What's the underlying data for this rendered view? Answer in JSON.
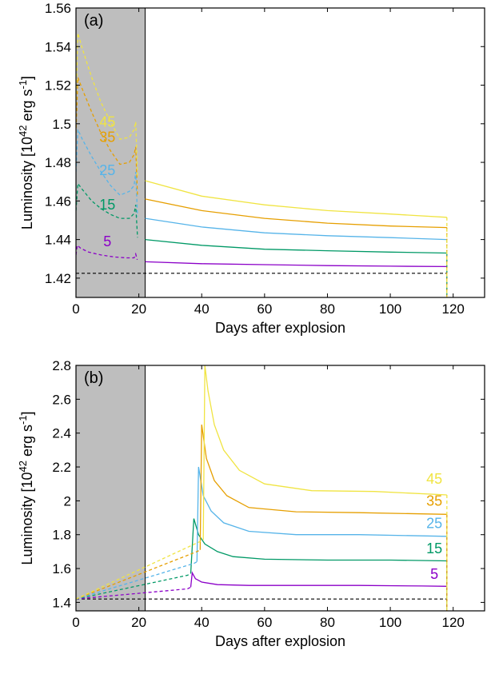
{
  "chart_data": [
    {
      "type": "line",
      "panel_label": "(a)",
      "xlabel": "Days after explosion",
      "ylabel": "Luminosity [10^42 erg s^-1]",
      "ylabel_parts": {
        "base": "Luminosity [10",
        "exp1": "42",
        "mid": " erg s",
        "exp2": "-1",
        "end": "]"
      },
      "xlim": [
        0,
        130
      ],
      "ylim": [
        1.41,
        1.56
      ],
      "xticks": [
        0,
        20,
        40,
        60,
        80,
        100,
        120
      ],
      "yticks": [
        1.42,
        1.44,
        1.46,
        1.48,
        1.5,
        1.52,
        1.54,
        1.56
      ],
      "ytick_labels": [
        "1.42",
        "1.44",
        "1.46",
        "1.48",
        "1.5",
        "1.52",
        "1.54",
        "1.56"
      ],
      "shaded_region": [
        0,
        22
      ],
      "baseline": {
        "y": 1.4225,
        "x": [
          0,
          118
        ],
        "style": "dashed",
        "color": "#000000"
      },
      "series": [
        {
          "name": "5",
          "color": "#8b00c8",
          "dashed": [
            [
              0,
              1.432
            ],
            [
              0.4,
              1.437
            ],
            [
              1.5,
              1.4355
            ],
            [
              4,
              1.4335
            ],
            [
              8,
              1.432
            ],
            [
              12,
              1.431
            ],
            [
              16,
              1.4305
            ],
            [
              18.5,
              1.4305
            ],
            [
              19,
              1.4325
            ],
            [
              19.5,
              1.4295
            ]
          ],
          "solid": [
            [
              22,
              1.4285
            ],
            [
              40,
              1.4275
            ],
            [
              60,
              1.427
            ],
            [
              80,
              1.4265
            ],
            [
              100,
              1.4262
            ],
            [
              118,
              1.426
            ]
          ],
          "label_at": [
            10,
            1.4365
          ]
        },
        {
          "name": "15",
          "color": "#009966",
          "dashed": [
            [
              0,
              1.455
            ],
            [
              0.6,
              1.469
            ],
            [
              2,
              1.466
            ],
            [
              5,
              1.46
            ],
            [
              8,
              1.456
            ],
            [
              11,
              1.453
            ],
            [
              14,
              1.451
            ],
            [
              17,
              1.451
            ],
            [
              18.5,
              1.4535
            ],
            [
              19,
              1.458
            ],
            [
              19.6,
              1.441
            ]
          ],
          "solid": [
            [
              22,
              1.44
            ],
            [
              40,
              1.437
            ],
            [
              60,
              1.435
            ],
            [
              80,
              1.4342
            ],
            [
              100,
              1.4335
            ],
            [
              118,
              1.433
            ]
          ],
          "label_at": [
            10,
            1.4555
          ]
        },
        {
          "name": "25",
          "color": "#56b4e9",
          "dashed": [
            [
              0,
              1.475
            ],
            [
              0.6,
              1.497
            ],
            [
              2,
              1.492
            ],
            [
              5,
              1.483
            ],
            [
              8,
              1.475
            ],
            [
              11,
              1.468
            ],
            [
              14,
              1.463
            ],
            [
              17,
              1.465
            ],
            [
              18.5,
              1.468
            ],
            [
              19,
              1.475
            ],
            [
              19.6,
              1.452
            ]
          ],
          "solid": [
            [
              22,
              1.451
            ],
            [
              40,
              1.4465
            ],
            [
              60,
              1.4435
            ],
            [
              80,
              1.442
            ],
            [
              100,
              1.441
            ],
            [
              118,
              1.44
            ]
          ],
          "label_at": [
            10,
            1.4735
          ]
        },
        {
          "name": "35",
          "color": "#e69f00",
          "dashed": [
            [
              0,
              1.495
            ],
            [
              0.6,
              1.524
            ],
            [
              2,
              1.518
            ],
            [
              5,
              1.506
            ],
            [
              8,
              1.495
            ],
            [
              11,
              1.486
            ],
            [
              14,
              1.479
            ],
            [
              17,
              1.48
            ],
            [
              18.5,
              1.484
            ],
            [
              19,
              1.488
            ],
            [
              19.6,
              1.462
            ]
          ],
          "solid": [
            [
              22,
              1.461
            ],
            [
              40,
              1.455
            ],
            [
              60,
              1.451
            ],
            [
              80,
              1.4485
            ],
            [
              100,
              1.447
            ],
            [
              118,
              1.4462
            ]
          ],
          "label_at": [
            10,
            1.4905
          ]
        },
        {
          "name": "45",
          "color": "#f0e442",
          "dashed": [
            [
              0,
              1.51
            ],
            [
              0.6,
              1.547
            ],
            [
              2,
              1.539
            ],
            [
              5,
              1.524
            ],
            [
              8,
              1.511
            ],
            [
              11,
              1.501
            ],
            [
              14,
              1.492
            ],
            [
              17,
              1.493
            ],
            [
              18.5,
              1.497
            ],
            [
              19,
              1.501
            ],
            [
              19.6,
              1.473
            ]
          ],
          "solid": [
            [
              22,
              1.4705
            ],
            [
              40,
              1.4625
            ],
            [
              60,
              1.458
            ],
            [
              80,
              1.455
            ],
            [
              100,
              1.4532
            ],
            [
              118,
              1.4515
            ]
          ],
          "label_at": [
            10,
            1.4985
          ]
        }
      ]
    },
    {
      "type": "line",
      "panel_label": "(b)",
      "xlabel": "Days after explosion",
      "ylabel": "Luminosity [10^42 erg s^-1]",
      "ylabel_parts": {
        "base": "Luminosity [10",
        "exp1": "42",
        "mid": " erg s",
        "exp2": "-1",
        "end": "]"
      },
      "xlim": [
        0,
        130
      ],
      "ylim": [
        1.35,
        2.8
      ],
      "xticks": [
        0,
        20,
        40,
        60,
        80,
        100,
        120
      ],
      "yticks": [
        1.4,
        1.6,
        1.8,
        2.0,
        2.2,
        2.4,
        2.6,
        2.8
      ],
      "ytick_labels": [
        "1.4",
        "1.6",
        "1.8",
        "2",
        "2.2",
        "2.4",
        "2.6",
        "2.8"
      ],
      "shaded_region": [
        0,
        22
      ],
      "baseline": {
        "y": 1.42,
        "x": [
          0,
          118
        ],
        "style": "dashed",
        "color": "#000000"
      },
      "series": [
        {
          "name": "5",
          "color": "#8b00c8",
          "dashed": [
            [
              0,
              1.42
            ],
            [
              35.5,
              1.48
            ],
            [
              36.5,
              1.49
            ]
          ],
          "solid": [
            [
              36.5,
              1.49
            ],
            [
              37,
              1.575
            ],
            [
              38,
              1.54
            ],
            [
              40,
              1.52
            ],
            [
              45,
              1.505
            ],
            [
              55,
              1.5
            ],
            [
              70,
              1.5
            ],
            [
              90,
              1.5
            ],
            [
              110,
              1.497
            ],
            [
              118,
              1.495
            ]
          ],
          "label_at": [
            114,
            1.54
          ]
        },
        {
          "name": "15",
          "color": "#009966",
          "dashed": [
            [
              0,
              1.42
            ],
            [
              35.5,
              1.56
            ],
            [
              36.5,
              1.57
            ]
          ],
          "solid": [
            [
              36.5,
              1.57
            ],
            [
              37.5,
              1.895
            ],
            [
              39,
              1.8
            ],
            [
              41,
              1.745
            ],
            [
              45,
              1.7
            ],
            [
              50,
              1.67
            ],
            [
              60,
              1.655
            ],
            [
              80,
              1.65
            ],
            [
              100,
              1.65
            ],
            [
              118,
              1.645
            ]
          ],
          "label_at": [
            114,
            1.69
          ]
        },
        {
          "name": "25",
          "color": "#56b4e9",
          "dashed": [
            [
              0,
              1.42
            ],
            [
              37.5,
              1.63
            ],
            [
              38.5,
              1.64
            ]
          ],
          "solid": [
            [
              38.5,
              1.64
            ],
            [
              39,
              2.2
            ],
            [
              40.5,
              2.03
            ],
            [
              43,
              1.94
            ],
            [
              47,
              1.87
            ],
            [
              55,
              1.82
            ],
            [
              70,
              1.8
            ],
            [
              90,
              1.8
            ],
            [
              118,
              1.79
            ]
          ],
          "label_at": [
            114,
            1.84
          ]
        },
        {
          "name": "35",
          "color": "#e69f00",
          "dashed": [
            [
              0,
              1.42
            ],
            [
              38.5,
              1.7
            ],
            [
              39.5,
              1.71
            ]
          ],
          "solid": [
            [
              39.5,
              1.71
            ],
            [
              40,
              2.45
            ],
            [
              41.5,
              2.25
            ],
            [
              44,
              2.12
            ],
            [
              48,
              2.03
            ],
            [
              55,
              1.96
            ],
            [
              70,
              1.935
            ],
            [
              90,
              1.93
            ],
            [
              118,
              1.92
            ]
          ],
          "label_at": [
            114,
            1.97
          ]
        },
        {
          "name": "45",
          "color": "#f0e442",
          "dashed": [
            [
              0,
              1.42
            ],
            [
              39.5,
              1.76
            ],
            [
              40.5,
              1.77
            ]
          ],
          "solid": [
            [
              40.5,
              1.77
            ],
            [
              41,
              2.8
            ],
            [
              42,
              2.65
            ],
            [
              44,
              2.45
            ],
            [
              47,
              2.3
            ],
            [
              52,
              2.18
            ],
            [
              60,
              2.1
            ],
            [
              75,
              2.06
            ],
            [
              95,
              2.055
            ],
            [
              118,
              2.035
            ]
          ],
          "label_at": [
            114,
            2.1
          ]
        }
      ]
    }
  ]
}
